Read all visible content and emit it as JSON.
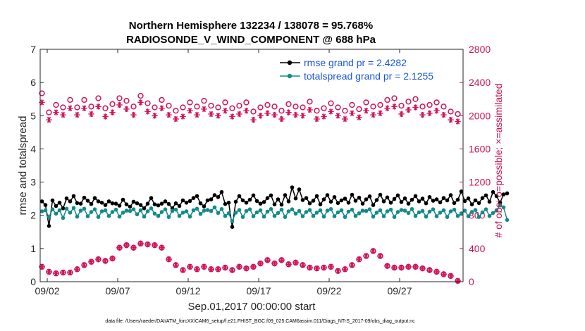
{
  "chart_data": {
    "type": "line",
    "title": [
      "Northern Hemisphere 132234 / 138078 = 95.768%",
      "RADIOSONDE_V_WIND_COMPONENT @ 688 hPa"
    ],
    "xlabel": "Sep.01,2017 00:00:00 start",
    "ylabel": "rmse and totalspread",
    "y2label": "# of obs: o=possible; ×=assimilated",
    "footer": "data file: /Users/raeder/DAI/ATM_forcXX/CAM6_setup/f.e21.FHIST_BGC.f09_025.CAM6assim.011/Diags_NTrS_2017-09/obs_diag_output.nc",
    "xlim": [
      1.5,
      31.5
    ],
    "ylim": [
      0,
      7
    ],
    "y2lim": [
      0,
      2800
    ],
    "x_ticks": [
      2,
      7,
      12,
      17,
      22,
      27
    ],
    "x_tick_labels": [
      "09/02",
      "09/07",
      "09/12",
      "09/17",
      "09/22",
      "09/27"
    ],
    "y_ticks": [
      0,
      1,
      2,
      3,
      4,
      5,
      6,
      7
    ],
    "y2_ticks": [
      0,
      400,
      800,
      1200,
      1600,
      2000,
      2400,
      2800
    ],
    "x_start": 1.625,
    "x_step": 0.25,
    "legend": [
      {
        "label": "rmse grand pr = 2.4282",
        "color": "#000000"
      },
      {
        "label": "totalspread grand pr = 2.1255",
        "color": "#138a8a"
      }
    ],
    "series": [
      {
        "name": "rmse",
        "axis": "left",
        "color": "#000000",
        "values": [
          2.42,
          2.31,
          1.68,
          2.45,
          2.28,
          2.38,
          2.21,
          2.51,
          2.42,
          2.58,
          2.37,
          2.35,
          2.53,
          2.44,
          2.34,
          2.52,
          2.42,
          2.38,
          2.31,
          2.42,
          2.36,
          2.35,
          2.29,
          2.47,
          2.33,
          2.26,
          2.41,
          2.36,
          2.31,
          2.21,
          2.35,
          2.52,
          2.33,
          2.3,
          2.35,
          2.42,
          2.34,
          2.21,
          2.36,
          2.28,
          2.45,
          2.38,
          2.43,
          2.52,
          2.58,
          2.36,
          2.27,
          2.45,
          2.48,
          2.61,
          2.55,
          2.7,
          2.34,
          2.38,
          1.65,
          2.41,
          2.58,
          2.45,
          2.38,
          2.47,
          2.6,
          2.43,
          2.35,
          2.4,
          2.52,
          2.6,
          2.33,
          2.48,
          2.32,
          2.61,
          2.42,
          2.84,
          2.51,
          2.78,
          2.46,
          2.52,
          2.36,
          2.44,
          2.58,
          2.33,
          2.48,
          2.61,
          2.41,
          2.55,
          2.37,
          2.45,
          2.5,
          2.38,
          2.62,
          2.44,
          2.53,
          2.35,
          2.48,
          2.57,
          2.31,
          2.46,
          2.62,
          2.42,
          2.54,
          2.38,
          2.49,
          2.6,
          2.4,
          2.51,
          2.35,
          2.47,
          2.58,
          2.42,
          2.5,
          2.36,
          2.55,
          2.44,
          2.48,
          2.39,
          2.52,
          2.45,
          2.61,
          2.37,
          2.47,
          2.72,
          2.43,
          2.51,
          2.33,
          2.45,
          2.37,
          2.52,
          2.6,
          2.41,
          2.7,
          2.58,
          2.38,
          2.63,
          2.66
        ]
      },
      {
        "name": "totalspread",
        "axis": "left",
        "color": "#138a8a",
        "values": [
          2.12,
          2.15,
          1.95,
          2.18,
          2.05,
          2.15,
          1.92,
          2.2,
          2.08,
          2.22,
          1.96,
          2.14,
          2.2,
          1.97,
          2.1,
          2.18,
          1.95,
          2.12,
          2.15,
          1.98,
          2.1,
          2.17,
          1.96,
          2.08,
          2.14,
          2.13,
          2.18,
          2.03,
          2.15,
          1.96,
          2.12,
          2.21,
          2.05,
          1.98,
          2.1,
          2.18,
          1.95,
          2.13,
          2.17,
          1.98,
          2.08,
          2.12,
          1.96,
          2.15,
          2.2,
          2.04,
          2.14,
          2.16,
          2.13,
          2.24,
          2.07,
          2.19,
          1.98,
          2.06,
          1.82,
          2.08,
          2.16,
          1.95,
          2.13,
          2.18,
          1.97,
          2.09,
          2.15,
          1.96,
          2.11,
          2.19,
          1.98,
          2.07,
          2.17,
          1.95,
          2.12,
          2.18,
          2.05,
          2.13,
          1.97,
          2.1,
          2.16,
          1.98,
          2.08,
          2.15,
          1.96,
          2.14,
          2.19,
          1.97,
          2.09,
          2.15,
          1.95,
          2.11,
          2.17,
          1.98,
          2.06,
          2.14,
          2.13,
          2.18,
          1.96,
          2.08,
          2.15,
          1.97,
          2.12,
          2.17,
          1.95,
          2.1,
          2.16,
          2.14,
          2.07,
          2.19,
          1.98,
          2.09,
          2.13,
          1.96,
          2.11,
          2.18,
          1.97,
          2.08,
          2.15,
          1.95,
          2.12,
          2.17,
          1.98,
          2.06,
          2.14,
          1.97,
          2.1,
          2.16,
          1.95,
          2.09,
          2.18,
          1.98,
          2.07,
          2.15,
          2.3,
          2.24,
          1.86
        ]
      }
    ],
    "obs_possible": {
      "axis": "right",
      "color": "#d0145a",
      "marker": "o",
      "x": [
        1.625,
        2.125,
        2.625,
        3.125,
        3.625,
        4.125,
        4.625,
        5.125,
        5.625,
        6.125,
        6.625,
        7.125,
        7.625,
        8.125,
        8.625,
        9.125,
        9.625,
        10.125,
        10.625,
        11.125,
        11.625,
        12.125,
        12.625,
        13.125,
        13.625,
        14.125,
        14.625,
        15.125,
        15.625,
        16.125,
        16.625,
        17.125,
        17.625,
        18.125,
        18.625,
        19.125,
        19.625,
        20.125,
        20.625,
        21.125,
        21.625,
        22.125,
        22.625,
        23.125,
        23.625,
        24.125,
        24.625,
        25.125,
        25.625,
        26.125,
        26.625,
        27.125,
        27.625,
        28.125,
        28.625,
        29.125,
        29.625,
        30.125,
        30.625,
        31.125
      ],
      "values": [
        2270,
        2040,
        2130,
        2100,
        2190,
        2100,
        2190,
        2110,
        2210,
        2090,
        2140,
        2210,
        2180,
        2110,
        2240,
        2150,
        2100,
        2190,
        2120,
        2060,
        2100,
        2160,
        2110,
        2180,
        2120,
        2100,
        2160,
        2090,
        2120,
        2160,
        2050,
        2100,
        2130,
        2110,
        2060,
        2140,
        2110,
        2100,
        2170,
        2060,
        2090,
        2150,
        2100,
        2060,
        2130,
        2080,
        2160,
        2110,
        2130,
        2190,
        2210,
        2120,
        2170,
        2200,
        2110,
        2130,
        2160,
        2110,
        2050,
        2020
      ]
    },
    "obs_assimilated": {
      "axis": "right",
      "color": "#d0145a",
      "marker": "x",
      "x": [
        1.625,
        2.125,
        2.625,
        3.125,
        3.625,
        4.125,
        4.625,
        5.125,
        5.625,
        6.125,
        6.625,
        7.125,
        7.625,
        8.125,
        8.625,
        9.125,
        9.625,
        10.125,
        10.625,
        11.125,
        11.625,
        12.125,
        12.625,
        13.125,
        13.625,
        14.125,
        14.625,
        15.125,
        15.625,
        16.125,
        16.625,
        17.125,
        17.625,
        18.125,
        18.625,
        19.125,
        19.625,
        20.125,
        20.625,
        21.125,
        21.625,
        22.125,
        22.625,
        23.125,
        23.625,
        24.125,
        24.625,
        25.125,
        25.625,
        26.125,
        26.625,
        27.125,
        27.625,
        28.125,
        28.625,
        29.125,
        29.625,
        30.125,
        30.625,
        31.125
      ],
      "values": [
        2160,
        1950,
        2040,
        2010,
        2090,
        2010,
        2090,
        2020,
        2110,
        1990,
        2040,
        2130,
        2080,
        2010,
        2160,
        2050,
        2000,
        2090,
        2010,
        1960,
        1990,
        2060,
        2010,
        2080,
        2020,
        2000,
        2060,
        1990,
        2020,
        2060,
        1950,
        2000,
        2030,
        2010,
        1960,
        2040,
        2010,
        2000,
        2070,
        1960,
        1990,
        2050,
        2000,
        1960,
        2030,
        1980,
        2060,
        2010,
        2030,
        2090,
        2110,
        2020,
        2070,
        2100,
        2010,
        2030,
        2060,
        2010,
        1950,
        1930
      ]
    },
    "obs_bottom": {
      "axis": "right",
      "color": "#d0145a",
      "marker": "ox",
      "x": [
        1.625,
        2.125,
        2.625,
        3.125,
        3.625,
        4.125,
        4.625,
        5.125,
        5.625,
        6.125,
        6.625,
        7.125,
        7.625,
        8.125,
        8.625,
        9.125,
        9.625,
        10.125,
        10.625,
        11.125,
        11.625,
        12.125,
        12.625,
        13.125,
        13.625,
        14.125,
        14.625,
        15.125,
        15.625,
        16.125,
        16.625,
        17.125,
        17.625,
        18.125,
        18.625,
        19.125,
        19.625,
        20.125,
        20.625,
        21.125,
        21.625,
        22.125,
        22.625,
        23.125,
        23.625,
        24.125,
        24.625,
        25.125,
        25.625,
        26.125,
        26.625,
        27.125,
        27.625,
        28.125,
        28.625,
        29.125,
        29.625,
        30.125,
        30.625,
        31.125
      ],
      "values": [
        180,
        120,
        100,
        110,
        110,
        150,
        200,
        240,
        270,
        250,
        280,
        410,
        440,
        410,
        460,
        450,
        440,
        410,
        270,
        200,
        140,
        180,
        150,
        180,
        150,
        150,
        170,
        140,
        180,
        160,
        180,
        220,
        260,
        220,
        260,
        210,
        230,
        200,
        170,
        160,
        170,
        180,
        130,
        150,
        200,
        270,
        310,
        370,
        310,
        190,
        170,
        170,
        180,
        180,
        160,
        140,
        120,
        90,
        70,
        10
      ]
    }
  }
}
